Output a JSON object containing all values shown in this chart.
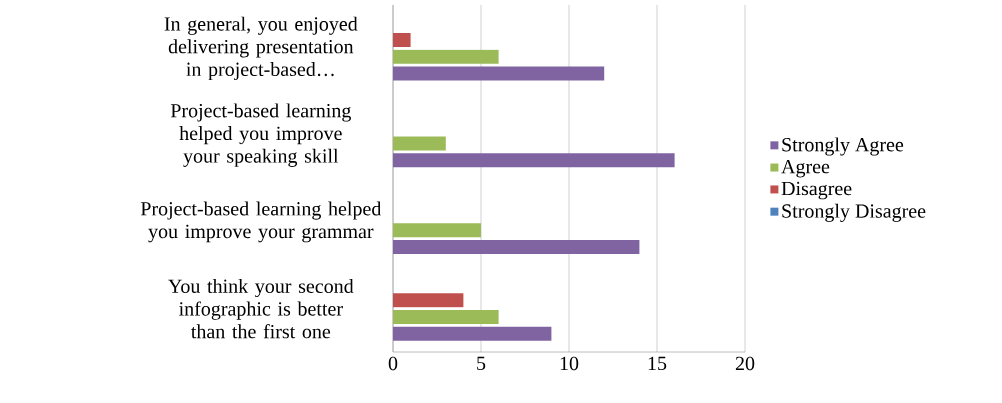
{
  "chart_data": {
    "type": "bar",
    "orientation": "horizontal",
    "categories": [
      "In general, you enjoyed delivering presentation in project-based…",
      "Project-based learning helped you improve your speaking skill",
      "Project-based learning helped you improve your grammar",
      "You think your second infographic is better than the first one"
    ],
    "series": [
      {
        "name": "Strongly Agree",
        "color": "#8064a2",
        "values": [
          12,
          16,
          14,
          9
        ]
      },
      {
        "name": "Agree",
        "color": "#9bbb59",
        "values": [
          6,
          3,
          5,
          6
        ]
      },
      {
        "name": "Disagree",
        "color": "#c0504d",
        "values": [
          1,
          0,
          0,
          4
        ]
      },
      {
        "name": "Strongly Disagree",
        "color": "#4f81bd",
        "values": [
          0,
          0,
          0,
          0
        ]
      }
    ],
    "xlim": [
      0,
      20
    ],
    "xticks": [
      0,
      5,
      10,
      15,
      20
    ],
    "grid": "x",
    "legend": "right"
  }
}
